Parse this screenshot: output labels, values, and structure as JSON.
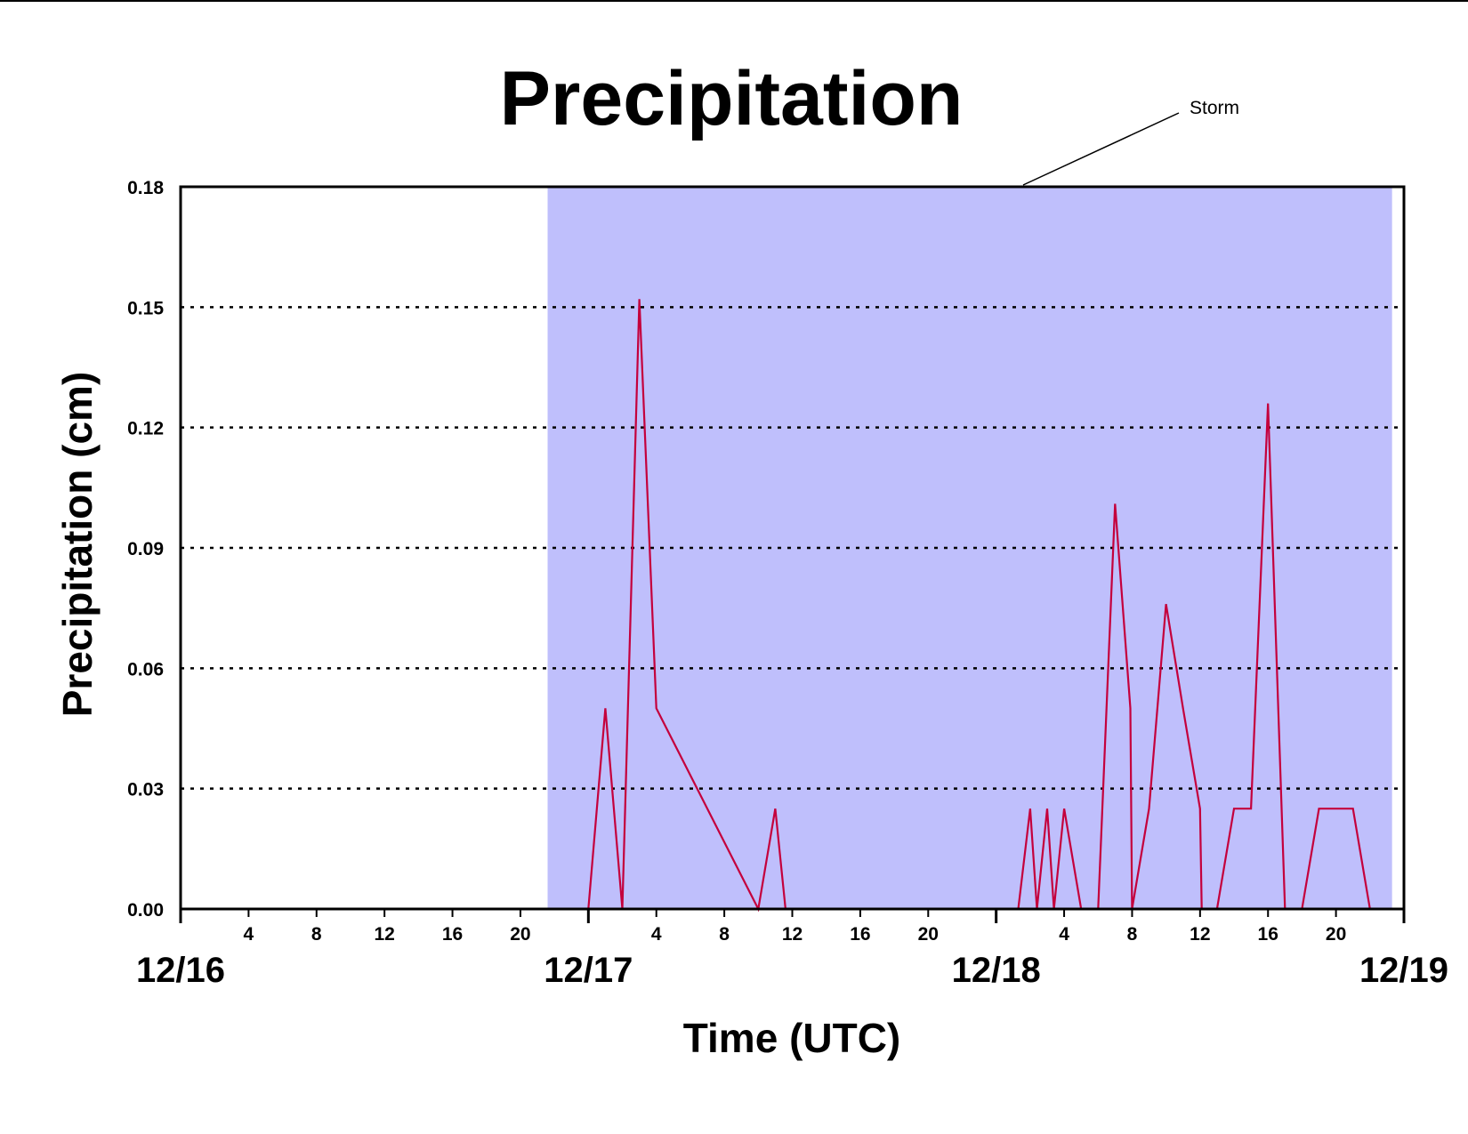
{
  "chart_data": {
    "type": "line",
    "title": "Precipitation",
    "xlabel": "Time (UTC)",
    "ylabel": "Precipitation (cm)",
    "x_unit": "hours UTC from 12/16 00:00",
    "xlim": [
      0,
      72
    ],
    "ylim": [
      0,
      0.18
    ],
    "y_ticks": [
      "0.00",
      "0.03",
      "0.06",
      "0.09",
      "0.12",
      "0.15",
      "0.18"
    ],
    "hour_ticks": [
      "4",
      "8",
      "12",
      "16",
      "20"
    ],
    "day_labels": [
      "12/16",
      "12/17",
      "12/18",
      "12/19"
    ],
    "grid": "horizontal dotted",
    "shaded_region": {
      "label": "Storm",
      "x_start": 21.6,
      "x_end": 71.3,
      "color": "#bfbffc"
    },
    "series": [
      {
        "color": "#c4003c",
        "x": [
          0,
          21.6,
          24,
          25,
          26,
          27,
          28,
          34,
          35,
          35.6,
          49.3,
          50,
          50.4,
          51,
          51.4,
          52,
          53,
          54,
          55,
          55.9,
          56,
          57,
          58,
          59,
          60,
          60.1,
          61,
          62,
          63,
          64,
          65,
          66,
          67,
          68,
          69,
          70,
          71,
          72
        ],
        "y": [
          0,
          0,
          0,
          0.05,
          0,
          0.152,
          0.05,
          0,
          0.025,
          0,
          0,
          0.025,
          0,
          0.025,
          0,
          0.025,
          0,
          0,
          0.101,
          0.05,
          0,
          0.025,
          0.076,
          0.05,
          0.025,
          0,
          0,
          0.025,
          0.025,
          0.126,
          0,
          0,
          0.025,
          0.025,
          0.025,
          0,
          0,
          0
        ]
      }
    ]
  }
}
